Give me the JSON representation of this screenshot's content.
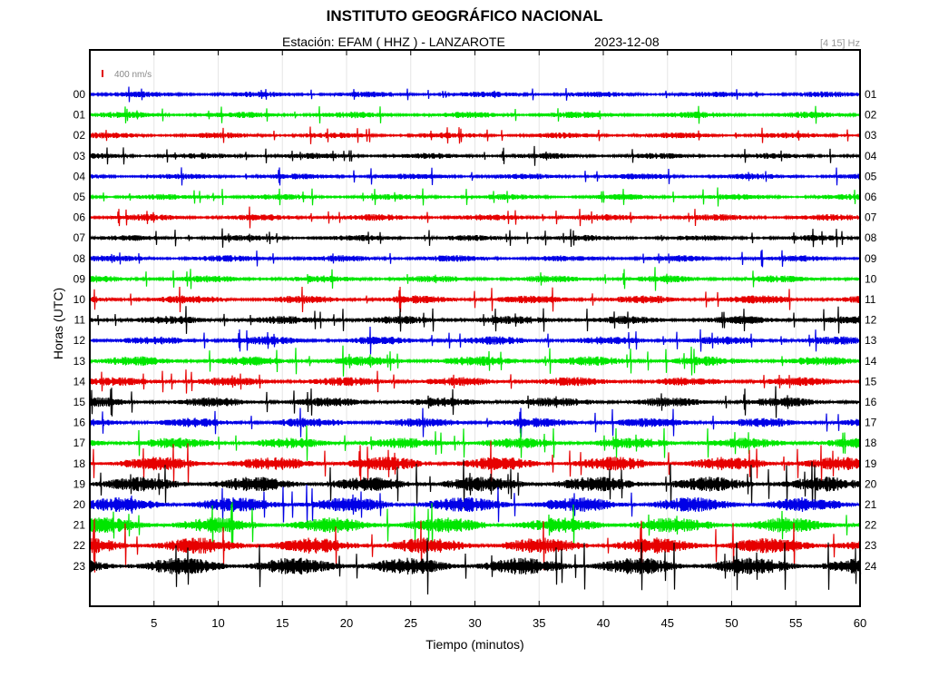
{
  "header": {
    "title": "INSTITUTO GEOGRÁFICO NACIONAL",
    "station": "Estación:  EFAM ( HHZ ) - LANZAROTE",
    "date": "2023-12-08",
    "filter": "[4 15] Hz"
  },
  "chart_data": {
    "type": "line",
    "title": "INSTITUTO GEOGRÁFICO NACIONAL",
    "xlabel": "Tiempo (minutos)",
    "ylabel": "Horas (UTC)",
    "xlim": [
      0,
      60
    ],
    "x_ticks": [
      5,
      10,
      15,
      20,
      25,
      30,
      35,
      40,
      45,
      50,
      55,
      60
    ],
    "scale_label": "400 nm/s",
    "scale_color": "#e00000",
    "grid": true,
    "trace_colors": [
      "#0000e6",
      "#00e600",
      "#e60000",
      "#000000"
    ],
    "rows": [
      {
        "left": "00",
        "right": "01",
        "amplitude": 1.0
      },
      {
        "left": "01",
        "right": "02",
        "amplitude": 1.1
      },
      {
        "left": "02",
        "right": "03",
        "amplitude": 1.0
      },
      {
        "left": "03",
        "right": "04",
        "amplitude": 1.0
      },
      {
        "left": "04",
        "right": "05",
        "amplitude": 1.0
      },
      {
        "left": "05",
        "right": "06",
        "amplitude": 1.0
      },
      {
        "left": "06",
        "right": "07",
        "amplitude": 1.1
      },
      {
        "left": "07",
        "right": "08",
        "amplitude": 1.0
      },
      {
        "left": "08",
        "right": "09",
        "amplitude": 1.1
      },
      {
        "left": "09",
        "right": "10",
        "amplitude": 1.2
      },
      {
        "left": "10",
        "right": "11",
        "amplitude": 1.4
      },
      {
        "left": "11",
        "right": "12",
        "amplitude": 1.4
      },
      {
        "left": "12",
        "right": "13",
        "amplitude": 1.4
      },
      {
        "left": "13",
        "right": "14",
        "amplitude": 1.6
      },
      {
        "left": "14",
        "right": "15",
        "amplitude": 1.5
      },
      {
        "left": "15",
        "right": "16",
        "amplitude": 1.6
      },
      {
        "left": "16",
        "right": "17",
        "amplitude": 1.6
      },
      {
        "left": "17",
        "right": "18",
        "amplitude": 1.8
      },
      {
        "left": "18",
        "right": "19",
        "amplitude": 2.3
      },
      {
        "left": "19",
        "right": "20",
        "amplitude": 2.5
      },
      {
        "left": "20",
        "right": "21",
        "amplitude": 2.5
      },
      {
        "left": "21",
        "right": "22",
        "amplitude": 2.6
      },
      {
        "left": "22",
        "right": "23",
        "amplitude": 2.7
      },
      {
        "left": "23",
        "right": "24",
        "amplitude": 2.9
      }
    ]
  }
}
